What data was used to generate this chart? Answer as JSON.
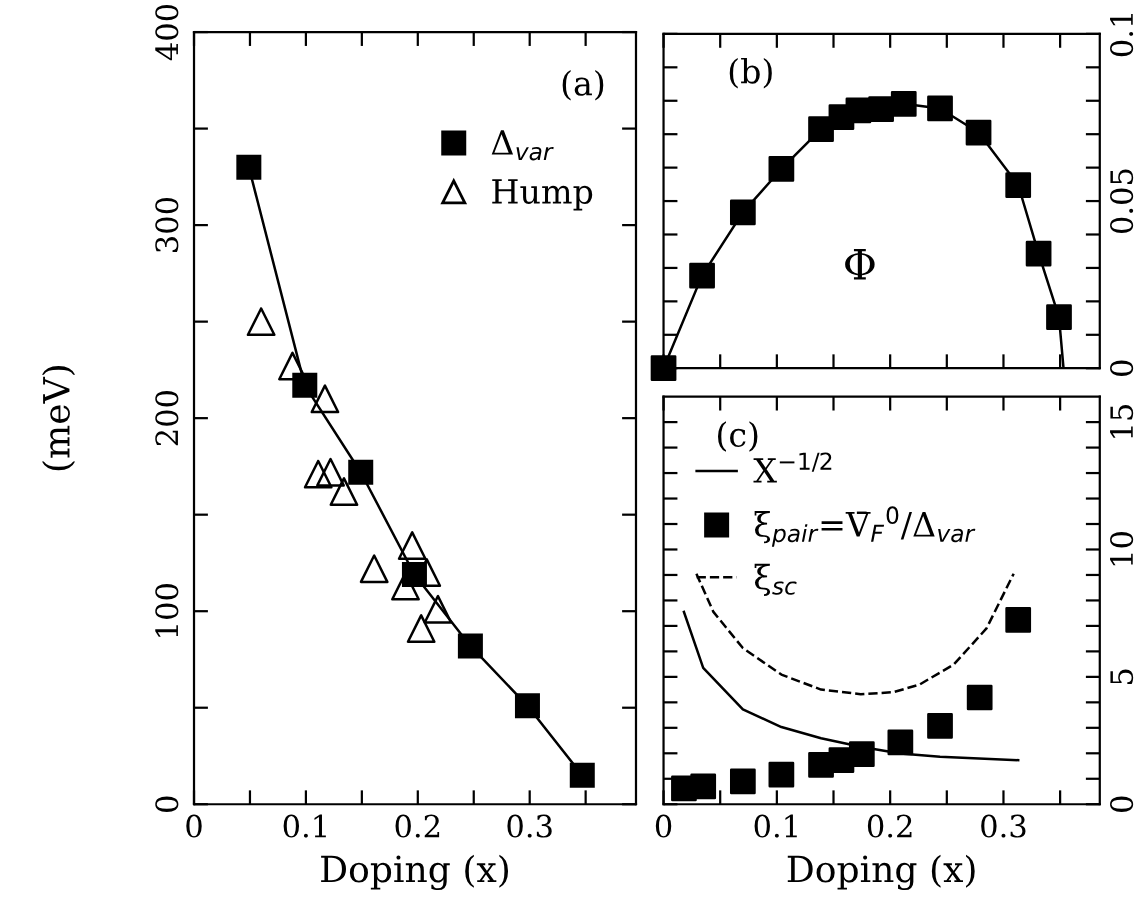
{
  "chart_data": [
    {
      "type": "scatter",
      "xlabel": "Doping (x)",
      "ylabel": "(meV)",
      "annotations": [
        "(a)"
      ],
      "xlim": [
        0,
        0.395
      ],
      "ylim": [
        0,
        400
      ],
      "xticks": [
        0,
        {
          "value": 0.05,
          "label": null
        },
        0.1,
        {
          "value": 0.15,
          "label": null
        },
        0.2,
        {
          "value": 0.25,
          "label": null
        },
        0.3,
        {
          "value": 0.35,
          "label": null
        }
      ],
      "yticks": [
        0,
        {
          "value": 50,
          "label": null
        },
        100,
        {
          "value": 150,
          "label": null
        },
        200,
        {
          "value": 250,
          "label": null
        },
        300,
        {
          "value": 350,
          "label": null
        },
        400
      ],
      "legend": "top right",
      "grid": false,
      "series": [
        {
          "name": "Δ$_{var}$",
          "type": "line",
          "marker": "square",
          "line_style": "solid",
          "color": "#000000",
          "x": [
            0.049,
            0.099,
            0.149,
            0.197,
            0.247,
            0.298,
            0.347
          ],
          "values": [
            330,
            217,
            172,
            119,
            82,
            51,
            15
          ]
        },
        {
          "name": "Hump",
          "marker": "triangle",
          "color": "#000000",
          "x": [
            0.06,
            0.088,
            0.117,
            0.111,
            0.122,
            0.134,
            0.161,
            0.195,
            0.189,
            0.208,
            0.218,
            0.203
          ],
          "values": [
            250,
            227,
            210,
            171,
            172,
            162,
            122,
            134,
            113,
            120,
            101,
            91
          ]
        }
      ]
    },
    {
      "type": "scatter",
      "annotations": [
        "(b)",
        "Φ"
      ],
      "tick_labels": "y",
      "xlim": [
        0,
        0.385
      ],
      "ylim": [
        0,
        0.1
      ],
      "xticks": [
        0,
        {
          "value": 0.05,
          "label": null
        },
        {
          "value": 0.1,
          "label": null
        },
        {
          "value": 0.15,
          "label": null
        },
        {
          "value": 0.2,
          "label": null
        },
        {
          "value": 0.25,
          "label": null
        },
        {
          "value": 0.3,
          "label": null
        },
        {
          "value": 0.35,
          "label": null
        }
      ],
      "yticks": [
        0,
        {
          "value": 0.01,
          "label": null
        },
        {
          "value": 0.02,
          "label": null
        },
        {
          "value": 0.03,
          "label": null
        },
        {
          "value": 0.04,
          "label": null
        },
        0.05,
        {
          "value": 0.06,
          "label": null
        },
        {
          "value": 0.07,
          "label": null
        },
        {
          "value": 0.08,
          "label": null
        },
        {
          "value": 0.09,
          "label": null
        },
        0.1
      ],
      "grid": false,
      "series": [
        {
          "type": "line",
          "line_style": "solid",
          "color": "#000000",
          "x": [
            0,
            0.034,
            0.07,
            0.104,
            0.139,
            0.157,
            0.172,
            0.192,
            0.212,
            0.244,
            0.278,
            0.313,
            0.331,
            0.349,
            0.353
          ],
          "values": [
            0,
            0.0277,
            0.0466,
            0.0596,
            0.0715,
            0.0751,
            0.0771,
            0.0775,
            0.0791,
            0.0777,
            0.0705,
            0.0548,
            0.0343,
            0.0153,
            0
          ]
        },
        {
          "marker": "square",
          "color": "#000000",
          "x": [
            0,
            0.034,
            0.07,
            0.104,
            0.139,
            0.157,
            0.172,
            0.192,
            0.212,
            0.244,
            0.278,
            0.313,
            0.331,
            0.349
          ],
          "values": [
            0,
            0.0277,
            0.0466,
            0.0596,
            0.0715,
            0.0751,
            0.0771,
            0.0775,
            0.0791,
            0.0777,
            0.0705,
            0.0548,
            0.0343,
            0.0153
          ]
        }
      ]
    },
    {
      "type": "scatter",
      "xlabel": "Doping (x)",
      "annotations": [
        "(c)"
      ],
      "legend": "top left",
      "xlim": [
        0,
        0.385
      ],
      "ylim": [
        0,
        16
      ],
      "xticks": [
        0,
        {
          "value": 0.05,
          "label": null
        },
        0.1,
        {
          "value": 0.15,
          "label": null
        },
        0.2,
        {
          "value": 0.25,
          "label": null
        },
        0.3,
        {
          "value": 0.35,
          "label": null
        }
      ],
      "yticks": [
        0,
        {
          "value": 1,
          "label": null
        },
        {
          "value": 2,
          "label": null
        },
        {
          "value": 3,
          "label": null
        },
        {
          "value": 4,
          "label": null
        },
        5,
        {
          "value": 6,
          "label": null
        },
        {
          "value": 7,
          "label": null
        },
        {
          "value": 8,
          "label": null
        },
        {
          "value": 9,
          "label": null
        },
        10,
        {
          "value": 11,
          "label": null
        },
        {
          "value": 12,
          "label": null
        },
        {
          "value": 13,
          "label": null
        },
        {
          "value": 14,
          "label": null
        },
        15
      ],
      "grid": false,
      "series": [
        {
          "name": "X$^{−1/2}$",
          "type": "line",
          "line_style": "solid",
          "color": "#000000",
          "x": [
            0.018,
            0.035,
            0.07,
            0.104,
            0.139,
            0.175,
            0.209,
            0.244,
            0.313
          ],
          "values": [
            7.55,
            5.35,
            3.72,
            3.03,
            2.59,
            2.25,
            1.99,
            1.86,
            1.73
          ]
        },
        {
          "name": "ξ$_{pair}$=V̄$_{F}$$^{0}$/Δ$_{var}$",
          "marker": "square",
          "color": "#000000",
          "x": [
            0.018,
            0.035,
            0.07,
            0.104,
            0.139,
            0.157,
            0.175,
            0.209,
            0.244,
            0.279,
            0.313
          ],
          "values": [
            0.62,
            0.7,
            0.9,
            1.16,
            1.55,
            1.73,
            1.97,
            2.43,
            3.08,
            4.19,
            7.24
          ]
        },
        {
          "name": "ξ$_{sc}$",
          "type": "line",
          "line_style": "dashed",
          "color": "#000000",
          "x": [
            0.029,
            0.044,
            0.07,
            0.104,
            0.139,
            0.174,
            0.203,
            0.226,
            0.256,
            0.285,
            0.309
          ],
          "values": [
            9.05,
            7.55,
            6.13,
            5.09,
            4.5,
            4.32,
            4.4,
            4.7,
            5.48,
            6.9,
            9.05
          ]
        }
      ]
    }
  ]
}
